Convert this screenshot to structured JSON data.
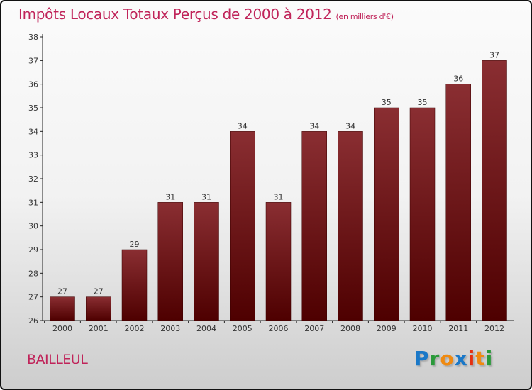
{
  "chart_data": {
    "type": "bar",
    "title": "Impôts Locaux Totaux Perçus de 2000 à 2012",
    "subtitle": "(en milliers d'€)",
    "categories": [
      "2000",
      "2001",
      "2002",
      "2003",
      "2004",
      "2005",
      "2006",
      "2007",
      "2008",
      "2009",
      "2010",
      "2011",
      "2012"
    ],
    "values": [
      27,
      27,
      29,
      31,
      31,
      34,
      31,
      34,
      34,
      35,
      35,
      36,
      37
    ],
    "xlabel": "",
    "ylabel": "",
    "ylim": [
      26,
      38
    ],
    "yticks": [
      26,
      27,
      28,
      29,
      30,
      31,
      32,
      33,
      34,
      35,
      36,
      37,
      38
    ],
    "grid": false,
    "bar_color": "#7a1a1e"
  },
  "location": "BAILLEUL",
  "logo": {
    "letters": [
      "P",
      "r",
      "o",
      "x",
      "i",
      "t",
      "i"
    ],
    "colors": [
      "#1a78c8",
      "#2a9a3a",
      "#f08a10",
      "#1a78c8",
      "#e53010",
      "#f08a10",
      "#2a9a3a"
    ]
  }
}
